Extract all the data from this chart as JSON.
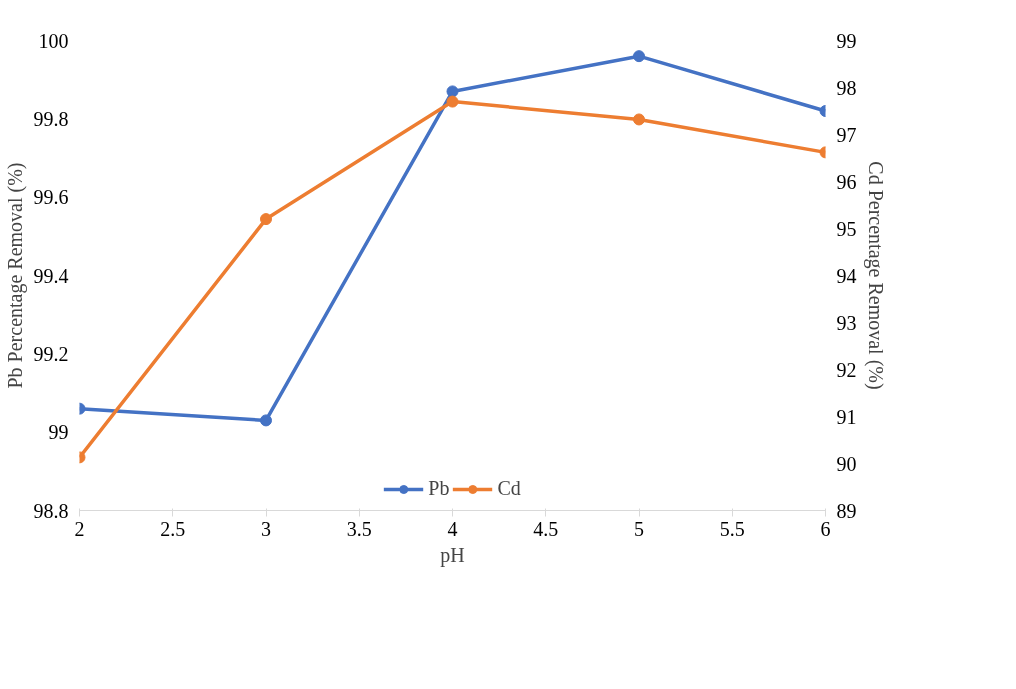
{
  "chart_data": {
    "type": "line",
    "xlabel": "pH",
    "ylabel": "Pb Percentage Removal (%)",
    "y2label": "Cd Percentage Removal (%)",
    "x": [
      2,
      3,
      4,
      5,
      6
    ],
    "series": [
      {
        "name": "Pb",
        "color": "#4472c4",
        "values": [
          99.06,
          99.03,
          99.87,
          99.96,
          99.82
        ]
      },
      {
        "name": "Cd",
        "color": "#ed7d31",
        "values": [
          90.13,
          95.2,
          97.7,
          97.32,
          96.62
        ],
        "axis": "y2"
      }
    ],
    "xlim": [
      2,
      6
    ],
    "xticks": [
      2,
      2.5,
      3,
      3.5,
      4,
      4.5,
      5,
      5.5,
      6
    ],
    "ylim": [
      98.8,
      100
    ],
    "yticks": [
      98.8,
      99,
      99.2,
      99.4,
      99.6,
      99.8,
      100
    ],
    "y2lim": [
      89,
      99
    ],
    "y2ticks": [
      89,
      90,
      91,
      92,
      93,
      94,
      95,
      96,
      97,
      98,
      99
    ],
    "grid": false,
    "legend": "bottom",
    "marker": "circle",
    "line_style": "solid"
  }
}
